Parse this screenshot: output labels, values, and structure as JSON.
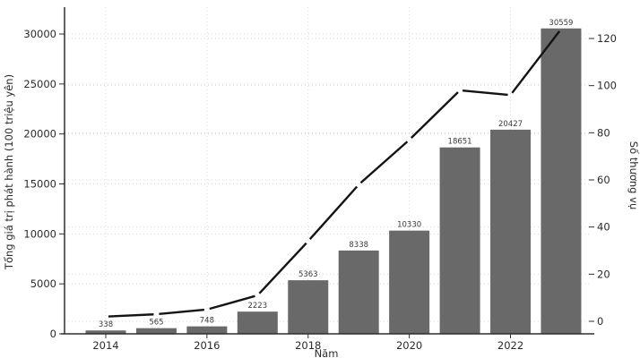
{
  "figure": {
    "background": "#ffffff",
    "bar_color": "#696969",
    "line_color": "#141414",
    "grid_color": "#d9d9d9",
    "spine_color": "#2e2e2e",
    "text_color": "#2b2b2b"
  },
  "chart_data": {
    "type": "bar",
    "combo": "bar+line",
    "title": "",
    "xlabel": "Năm",
    "ylabel_left": "Tổng giá trị phát hành (100 triệu yên)",
    "ylabel_right": "Số thương vụ",
    "categories": [
      2014,
      2015,
      2016,
      2017,
      2018,
      2019,
      2020,
      2021,
      2022,
      2023
    ],
    "series": [
      {
        "name": "Tổng giá trị phát hành (100 triệu yên)",
        "type": "bar",
        "axis": "left",
        "values": [
          338,
          565,
          748,
          2223,
          5363,
          8338,
          10330,
          18651,
          20427,
          30559
        ],
        "labels": [
          "338",
          "565",
          "748",
          "2223",
          "5363",
          "8338",
          "10330",
          "18651",
          "20427",
          "30559"
        ]
      },
      {
        "name": "Số thương vụ",
        "type": "line",
        "axis": "right",
        "values": [
          2,
          3,
          5,
          11,
          34,
          58,
          77,
          98,
          96,
          124
        ],
        "note": "line values estimated from right axis, no data labels shown"
      }
    ],
    "left_axis": {
      "ticks": [
        0,
        5000,
        10000,
        15000,
        20000,
        25000,
        30000
      ],
      "range": [
        0,
        32700
      ]
    },
    "right_axis": {
      "ticks": [
        0,
        20,
        40,
        60,
        80,
        100,
        120
      ],
      "range": [
        -5.3,
        138.6
      ]
    },
    "x_ticks": [
      "2014",
      "2016",
      "2018",
      "2020",
      "2022"
    ],
    "grid": true,
    "legend": "none"
  }
}
